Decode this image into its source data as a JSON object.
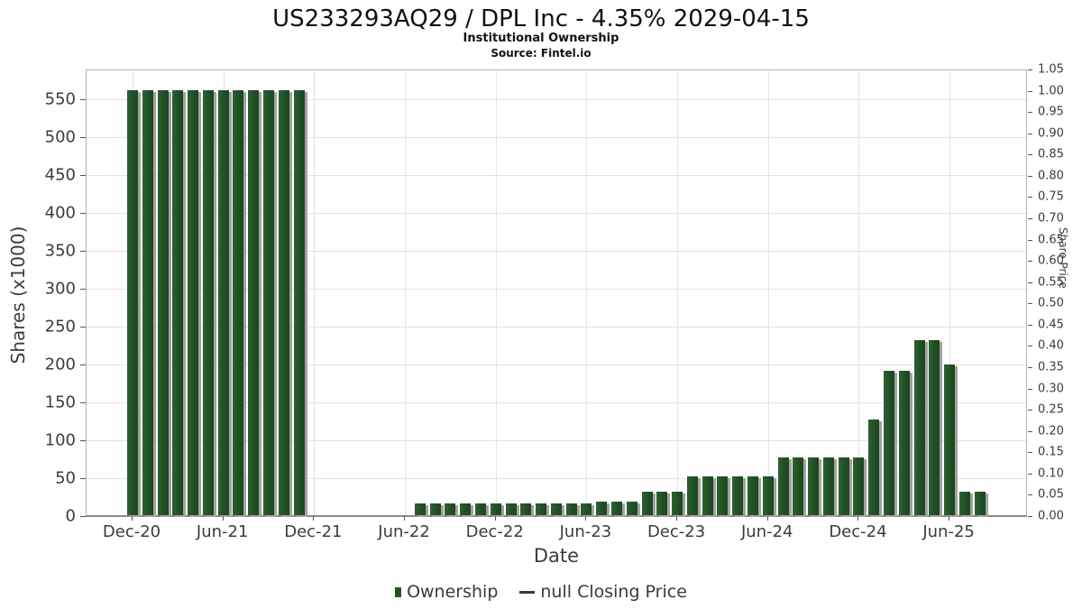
{
  "header": {
    "title": "US233293AQ29 / DPL Inc - 4.35% 2029-04-15",
    "subtitle": "Institutional Ownership",
    "source": "Source: Fintel.io"
  },
  "legend": {
    "ownership_label": "Ownership",
    "price_label": "null Closing Price",
    "ownership_color": "#235226",
    "price_line_color": "#3a3a3a"
  },
  "chart_data": {
    "type": "bar",
    "title": "US233293AQ29 / DPL Inc - 4.35% 2029-04-15",
    "subtitle": "Institutional Ownership",
    "source": "Source: Fintel.io",
    "xlabel": "Date",
    "ylabel_left": "Shares (x1000)",
    "ylabel_right": "Share Price",
    "grid": true,
    "legend_position": "bottom",
    "bar_color": "#235226",
    "bar_shadow_color": "#a2a2a2",
    "left_ylim": [
      0,
      589
    ],
    "right_ylim": [
      0,
      1.05
    ],
    "left_ticks": [
      0,
      50,
      100,
      150,
      200,
      250,
      300,
      350,
      400,
      450,
      500,
      550
    ],
    "right_ticks": [
      "0.00",
      "0.05",
      "0.10",
      "0.15",
      "0.20",
      "0.25",
      "0.30",
      "0.35",
      "0.40",
      "0.45",
      "0.50",
      "0.55",
      "0.60",
      "0.65",
      "0.70",
      "0.75",
      "0.80",
      "0.85",
      "0.90",
      "0.95",
      "1.00",
      "1.05"
    ],
    "x_ticks": [
      {
        "label": "Dec-20",
        "m": 0
      },
      {
        "label": "Jun-21",
        "m": 6
      },
      {
        "label": "Dec-21",
        "m": 12
      },
      {
        "label": "Jun-22",
        "m": 18
      },
      {
        "label": "Dec-22",
        "m": 24
      },
      {
        "label": "Jun-23",
        "m": 30
      },
      {
        "label": "Dec-23",
        "m": 36
      },
      {
        "label": "Jun-24",
        "m": 42
      },
      {
        "label": "Dec-24",
        "m": 48
      },
      {
        "label": "Jun-25",
        "m": 54
      }
    ],
    "points": [
      {
        "m": 0,
        "month": "Dec-20",
        "value": 560
      },
      {
        "m": 1,
        "month": "Jan-21",
        "value": 560
      },
      {
        "m": 2,
        "month": "Feb-21",
        "value": 560
      },
      {
        "m": 3,
        "month": "Mar-21",
        "value": 560
      },
      {
        "m": 4,
        "month": "Apr-21",
        "value": 560
      },
      {
        "m": 5,
        "month": "May-21",
        "value": 560
      },
      {
        "m": 6,
        "month": "Jun-21",
        "value": 560
      },
      {
        "m": 7,
        "month": "Jul-21",
        "value": 560
      },
      {
        "m": 8,
        "month": "Aug-21",
        "value": 560
      },
      {
        "m": 9,
        "month": "Sep-21",
        "value": 560
      },
      {
        "m": 10,
        "month": "Oct-21",
        "value": 560
      },
      {
        "m": 11,
        "month": "Nov-21",
        "value": 560
      },
      {
        "m": 19,
        "month": "Jul-22",
        "value": 16
      },
      {
        "m": 20,
        "month": "Aug-22",
        "value": 16
      },
      {
        "m": 21,
        "month": "Sep-22",
        "value": 16
      },
      {
        "m": 22,
        "month": "Oct-22",
        "value": 16
      },
      {
        "m": 23,
        "month": "Nov-22",
        "value": 16
      },
      {
        "m": 24,
        "month": "Dec-22",
        "value": 16
      },
      {
        "m": 25,
        "month": "Jan-23",
        "value": 16
      },
      {
        "m": 26,
        "month": "Feb-23",
        "value": 16
      },
      {
        "m": 27,
        "month": "Mar-23",
        "value": 16
      },
      {
        "m": 28,
        "month": "Apr-23",
        "value": 16
      },
      {
        "m": 29,
        "month": "May-23",
        "value": 16
      },
      {
        "m": 30,
        "month": "Jun-23",
        "value": 16
      },
      {
        "m": 31,
        "month": "Jul-23",
        "value": 18
      },
      {
        "m": 32,
        "month": "Aug-23",
        "value": 18
      },
      {
        "m": 33,
        "month": "Sep-23",
        "value": 18
      },
      {
        "m": 34,
        "month": "Oct-23",
        "value": 31
      },
      {
        "m": 35,
        "month": "Nov-23",
        "value": 31
      },
      {
        "m": 36,
        "month": "Dec-23",
        "value": 31
      },
      {
        "m": 37,
        "month": "Jan-24",
        "value": 51
      },
      {
        "m": 38,
        "month": "Feb-24",
        "value": 51
      },
      {
        "m": 39,
        "month": "Mar-24",
        "value": 51
      },
      {
        "m": 40,
        "month": "Apr-24",
        "value": 51
      },
      {
        "m": 41,
        "month": "May-24",
        "value": 51
      },
      {
        "m": 42,
        "month": "Jun-24",
        "value": 51
      },
      {
        "m": 43,
        "month": "Jul-24",
        "value": 76
      },
      {
        "m": 44,
        "month": "Aug-24",
        "value": 76
      },
      {
        "m": 45,
        "month": "Sep-24",
        "value": 76
      },
      {
        "m": 46,
        "month": "Oct-24",
        "value": 76
      },
      {
        "m": 47,
        "month": "Nov-24",
        "value": 76
      },
      {
        "m": 48,
        "month": "Dec-24",
        "value": 76
      },
      {
        "m": 49,
        "month": "Jan-25",
        "value": 126
      },
      {
        "m": 50,
        "month": "Feb-25",
        "value": 190
      },
      {
        "m": 51,
        "month": "Mar-25",
        "value": 190
      },
      {
        "m": 52,
        "month": "Apr-25",
        "value": 231
      },
      {
        "m": 53,
        "month": "May-25",
        "value": 231
      },
      {
        "m": 54,
        "month": "Jun-25",
        "value": 199
      },
      {
        "m": 55,
        "month": "Jul-25",
        "value": 31
      },
      {
        "m": 56,
        "month": "Aug-25",
        "value": 31
      }
    ]
  }
}
